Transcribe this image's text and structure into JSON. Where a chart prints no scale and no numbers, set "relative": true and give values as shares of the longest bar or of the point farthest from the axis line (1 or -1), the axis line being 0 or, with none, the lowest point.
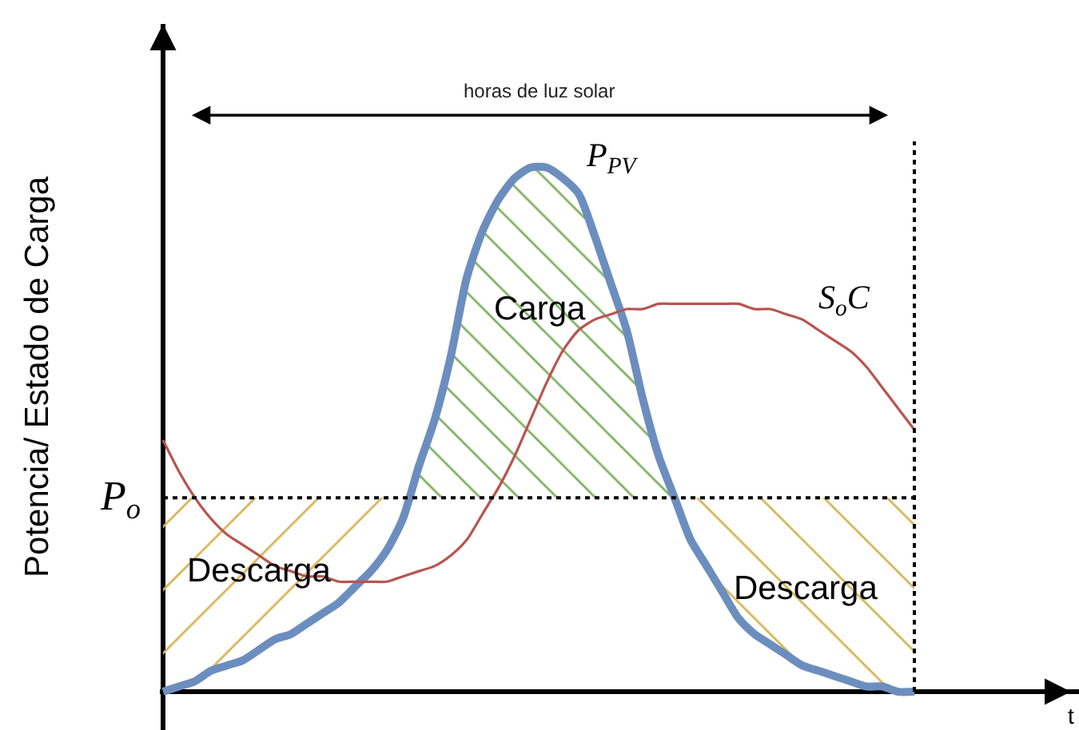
{
  "chart_data": {
    "type": "line",
    "relative": true,
    "ylabel": "Potencia/ Estado de Carga",
    "categories": [
      null,
      null,
      null,
      null,
      null,
      null,
      null,
      null,
      null,
      null,
      null,
      null,
      null,
      null,
      null,
      null,
      null,
      null,
      null,
      null,
      null,
      null,
      null,
      null,
      null,
      null,
      null,
      null,
      null,
      null,
      null,
      null,
      null,
      null,
      null,
      null,
      null,
      null,
      null,
      null,
      null,
      null,
      null,
      null,
      null,
      null,
      null,
      null
    ],
    "series": [
      {
        "name": "P$_{PV}$",
        "color": "#6c8ebf",
        "values": [
          0,
          0.01,
          0.02,
          0.04,
          0.05,
          0.06,
          0.08,
          0.1,
          0.11,
          0.13,
          0.15,
          0.17,
          0.2,
          0.23,
          0.27,
          0.33,
          0.43,
          0.52,
          0.64,
          0.79,
          0.88,
          0.94,
          0.98,
          1.0,
          1.0,
          0.98,
          0.95,
          0.87,
          0.78,
          0.69,
          0.56,
          0.45,
          0.37,
          0.29,
          0.24,
          0.19,
          0.14,
          0.11,
          0.09,
          0.07,
          0.05,
          0.04,
          0.03,
          0.02,
          0.01,
          0.01,
          0,
          0
        ]
      },
      {
        "name": "S$_{o}$C",
        "color": "#b85450",
        "values": [
          0.48,
          0.42,
          0.37,
          0.33,
          0.3,
          0.28,
          0.26,
          0.24,
          0.23,
          0.22,
          0.22,
          0.21,
          0.21,
          0.21,
          0.21,
          0.22,
          0.23,
          0.24,
          0.26,
          0.29,
          0.34,
          0.39,
          0.45,
          0.52,
          0.59,
          0.65,
          0.69,
          0.71,
          0.72,
          0.73,
          0.73,
          0.74,
          0.74,
          0.74,
          0.74,
          0.74,
          0.74,
          0.73,
          0.73,
          0.72,
          0.71,
          0.69,
          0.67,
          0.65,
          0.62,
          0.58,
          0.54,
          0.5
        ]
      },
      {
        "type": "area",
        "name": "Descarga",
        "color": "#d6b656",
        "values": [
          0.37,
          0.37,
          0.37,
          0.37,
          0.37,
          0.37,
          0.37,
          0.37,
          0.37,
          0.37,
          0.37,
          0.37,
          0.37,
          0.37,
          0.37,
          0.37,
          null,
          null,
          null,
          null,
          null,
          null,
          null,
          null,
          null,
          null,
          null,
          null,
          null,
          null,
          null,
          null,
          null,
          null,
          null,
          null,
          null,
          null,
          null,
          null,
          null,
          null,
          null,
          null,
          null,
          null,
          null,
          null
        ]
      },
      {
        "type": "area",
        "name": "Carga",
        "color": "#82b366",
        "values": [
          null,
          null,
          null,
          null,
          null,
          null,
          null,
          null,
          null,
          null,
          null,
          null,
          null,
          null,
          null,
          null,
          0.43,
          0.52,
          0.64,
          0.79,
          0.88,
          0.94,
          0.98,
          1.0,
          1.0,
          0.98,
          0.95,
          0.87,
          0.78,
          0.69,
          0.56,
          0.45,
          0.37,
          null,
          null,
          null,
          null,
          null,
          null,
          null,
          null,
          null,
          null,
          null,
          null,
          null,
          null,
          null
        ]
      },
      {
        "type": "area",
        "name": "Descarga",
        "color": "#d6b656",
        "values": [
          null,
          null,
          null,
          null,
          null,
          null,
          null,
          null,
          null,
          null,
          null,
          null,
          null,
          null,
          null,
          null,
          null,
          null,
          null,
          null,
          null,
          null,
          null,
          null,
          null,
          null,
          null,
          null,
          null,
          null,
          null,
          null,
          0.37,
          0.37,
          0.37,
          0.37,
          0.37,
          0.37,
          0.37,
          0.37,
          0.37,
          0.37,
          0.37,
          0.37,
          0.37,
          0.37,
          0.37,
          0.37
        ]
      }
    ],
    "ref_lines": [
      {
        "axis": "y",
        "value": 0.37,
        "label": "P$_{o}$",
        "line_style": "dotted",
        "color": "#000000"
      }
    ],
    "annotations": [
      "horas de luz solar",
      "t"
    ],
    "legend": false
  }
}
